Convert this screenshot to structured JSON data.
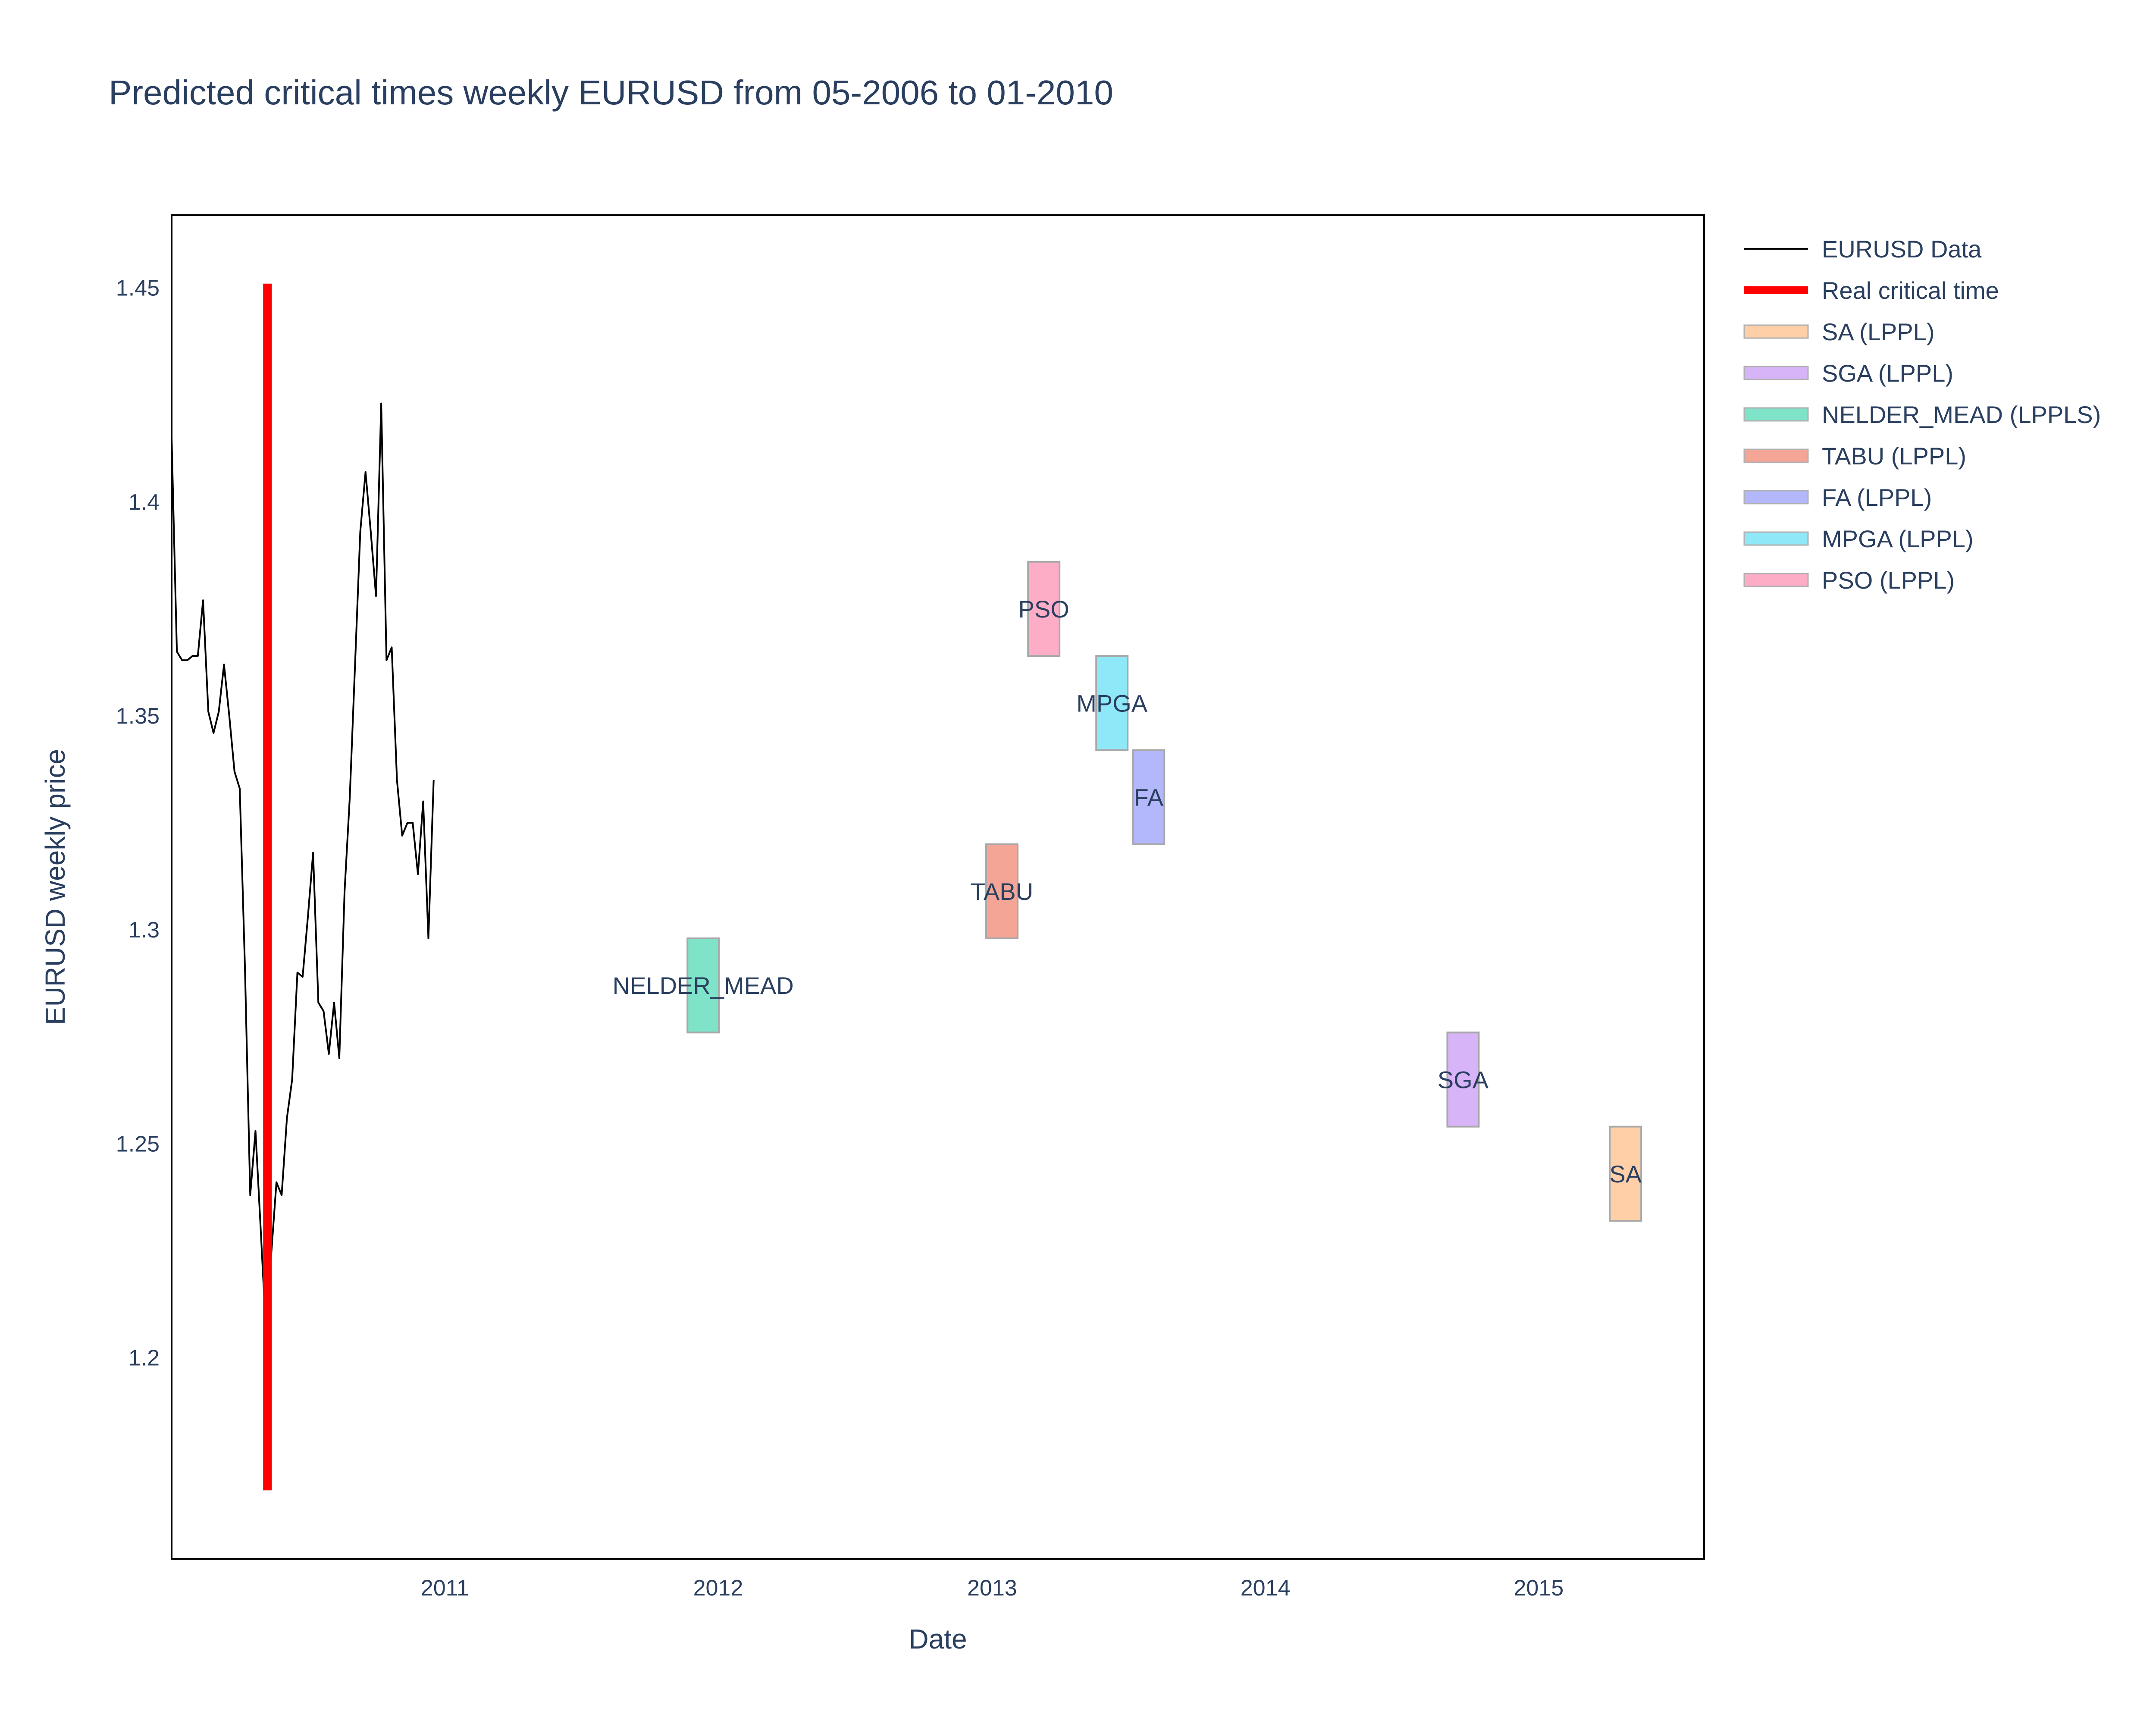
{
  "chart_data": {
    "type": "line",
    "title": "Predicted critical times weekly EURUSD from 05-2006 to 01-2010",
    "xlabel": "Date",
    "ylabel": "EURUSD weekly price",
    "x_ticks": [
      "2011",
      "2012",
      "2013",
      "2014",
      "2015"
    ],
    "y_ticks": [
      "1.2",
      "1.25",
      "1.3",
      "1.35",
      "1.4",
      "1.45"
    ],
    "xlim": [
      "2010-01-01",
      "2015-08-10"
    ],
    "ylim": [
      1.153,
      1.467
    ],
    "grid": false,
    "legend_position": "top-right, outside plot area",
    "series": [
      {
        "name": "EURUSD Data",
        "kind": "line",
        "color": "#000000",
        "points": [
          [
            "2010-01-01",
            1.415
          ],
          [
            "2010-01-08",
            1.365
          ],
          [
            "2010-01-15",
            1.363
          ],
          [
            "2010-01-22",
            1.363
          ],
          [
            "2010-01-29",
            1.364
          ],
          [
            "2010-02-05",
            1.364
          ],
          [
            "2010-02-12",
            1.377
          ],
          [
            "2010-02-19",
            1.351
          ],
          [
            "2010-02-26",
            1.346
          ],
          [
            "2010-03-05",
            1.351
          ],
          [
            "2010-03-12",
            1.362
          ],
          [
            "2010-03-19",
            1.35
          ],
          [
            "2010-03-26",
            1.337
          ],
          [
            "2010-04-02",
            1.333
          ],
          [
            "2010-04-09",
            1.291
          ],
          [
            "2010-04-16",
            1.238
          ],
          [
            "2010-04-23",
            1.253
          ],
          [
            "2010-04-30",
            1.23
          ],
          [
            "2010-05-07",
            1.206
          ],
          [
            "2010-05-14",
            1.224
          ],
          [
            "2010-05-21",
            1.241
          ],
          [
            "2010-05-28",
            1.238
          ],
          [
            "2010-06-04",
            1.256
          ],
          [
            "2010-06-11",
            1.265
          ],
          [
            "2010-06-18",
            1.29
          ],
          [
            "2010-06-25",
            1.289
          ],
          [
            "2010-07-02",
            1.303
          ],
          [
            "2010-07-09",
            1.318
          ],
          [
            "2010-07-16",
            1.283
          ],
          [
            "2010-07-23",
            1.281
          ],
          [
            "2010-07-30",
            1.271
          ],
          [
            "2010-08-06",
            1.283
          ],
          [
            "2010-08-13",
            1.27
          ],
          [
            "2010-08-20",
            1.309
          ],
          [
            "2010-08-27",
            1.331
          ],
          [
            "2010-09-03",
            1.362
          ],
          [
            "2010-09-10",
            1.393
          ],
          [
            "2010-09-17",
            1.407
          ],
          [
            "2010-09-24",
            1.393
          ],
          [
            "2010-10-01",
            1.378
          ],
          [
            "2010-10-08",
            1.423
          ],
          [
            "2010-10-15",
            1.363
          ],
          [
            "2010-10-22",
            1.366
          ],
          [
            "2010-10-29",
            1.335
          ],
          [
            "2010-11-05",
            1.322
          ],
          [
            "2010-11-12",
            1.325
          ],
          [
            "2010-11-19",
            1.325
          ],
          [
            "2010-11-26",
            1.313
          ],
          [
            "2010-12-03",
            1.33
          ],
          [
            "2010-12-10",
            1.298
          ],
          [
            "2010-12-17",
            1.335
          ]
        ]
      },
      {
        "name": "Real critical time",
        "kind": "vline",
        "color": "#ff0000",
        "x": "2010-05-09",
        "y": [
          1.169,
          1.451
        ]
      }
    ],
    "predictions": [
      {
        "name": "SA (LPPL)",
        "label": "SA",
        "color": "#ffcfa8",
        "x_start": "2015-04-06",
        "x_end": "2015-05-18",
        "y_low": 1.232,
        "y_high": 1.254
      },
      {
        "name": "SGA (LPPL)",
        "label": "SGA",
        "color": "#d7b3f8",
        "x_start": "2014-09-01",
        "x_end": "2014-10-13",
        "y_low": 1.254,
        "y_high": 1.276
      },
      {
        "name": "NELDER_MEAD (LPPLS)",
        "label": "NELDER_MEAD",
        "color": "#7ee3c8",
        "x_start": "2011-11-21",
        "x_end": "2012-01-02",
        "y_low": 1.276,
        "y_high": 1.298
      },
      {
        "name": "TABU (LPPL)",
        "label": "TABU",
        "color": "#f5a596",
        "x_start": "2012-12-24",
        "x_end": "2013-02-04",
        "y_low": 1.298,
        "y_high": 1.32
      },
      {
        "name": "FA (LPPL)",
        "label": "FA",
        "color": "#b3b7fb",
        "x_start": "2013-07-08",
        "x_end": "2013-08-19",
        "y_low": 1.32,
        "y_high": 1.342
      },
      {
        "name": "MPGA (LPPL)",
        "label": "MPGA",
        "color": "#8ee8f8",
        "x_start": "2013-05-20",
        "x_end": "2013-07-01",
        "y_low": 1.342,
        "y_high": 1.364
      },
      {
        "name": "PSO (LPPL)",
        "label": "PSO",
        "color": "#fdaec6",
        "x_start": "2013-02-18",
        "x_end": "2013-04-01",
        "y_low": 1.364,
        "y_high": 1.386
      }
    ]
  }
}
